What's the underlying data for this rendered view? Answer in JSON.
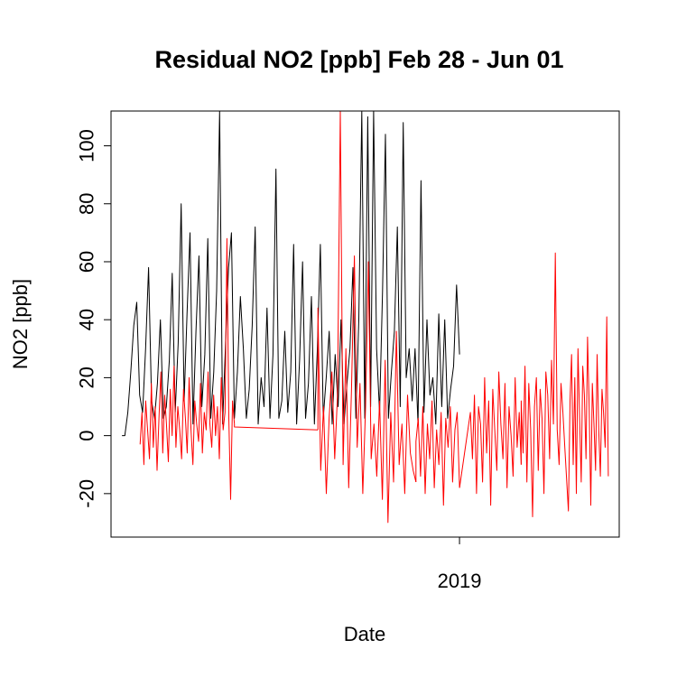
{
  "chart_data": {
    "type": "line",
    "title": "Residual NO2 [ppb] Feb 28 - Jun 01",
    "xlabel": "Date",
    "ylabel": "NO2 [ppb]",
    "x_ticks": [
      "2019"
    ],
    "y_ticks": [
      -20,
      0,
      20,
      40,
      60,
      80,
      100
    ],
    "ylim": [
      -35,
      112
    ],
    "grid": false,
    "legend": "none",
    "colors": {
      "series_black": "#000000",
      "series_red": "#ff0000",
      "axis": "#000000"
    },
    "series": [
      {
        "color": "#000000",
        "segments": [
          {
            "from": "2018-02-28",
            "to": "2018-06-01",
            "values": [
              0,
              0,
              8,
              22,
              38,
              46,
              14,
              8,
              30,
              58,
              12,
              6,
              18,
              40,
              6,
              10,
              26,
              56,
              8,
              32,
              80,
              12,
              42,
              70,
              4,
              36,
              62,
              10,
              28,
              68,
              6,
              22,
              50,
              112,
              4,
              32,
              58,
              70,
              6,
              22,
              48,
              30,
              6,
              16,
              38,
              72,
              4,
              20,
              10,
              44,
              6,
              28,
              92,
              6,
              12,
              36,
              8,
              22,
              66,
              4,
              26,
              60,
              6,
              18,
              48,
              4,
              30,
              66,
              6,
              20,
              36,
              4,
              28,
              10,
              40,
              4,
              18,
              30,
              58,
              6,
              40,
              112,
              6,
              110,
              10,
              112,
              30,
              8,
              50,
              104,
              6,
              22,
              36,
              72,
              10,
              108,
              20,
              30,
              12,
              30,
              4,
              88,
              8,
              40,
              14,
              20,
              4,
              42,
              10,
              40,
              6,
              16,
              24,
              52,
              28
            ]
          }
        ]
      },
      {
        "color": "#ff0000",
        "segments": [
          {
            "from": "2018-03-05",
            "to": "2018-03-31",
            "values": [
              -3,
              8,
              -10,
              12,
              2,
              -8,
              18,
              -4,
              10,
              -12,
              6,
              22,
              -6,
              14,
              4,
              -9,
              16,
              0,
              24,
              -4,
              10,
              2,
              -8,
              16,
              6,
              -6,
              20,
              2,
              -10,
              12,
              4,
              -2,
              18,
              -6,
              8,
              2,
              22,
              4,
              -4,
              14,
              0,
              10,
              -8,
              20,
              2,
              8,
              68,
              6,
              -22,
              12,
              4
            ]
          },
          {
            "from": "2018-03-31",
            "to": "2018-04-23",
            "values": [
              3,
              2
            ]
          },
          {
            "from": "2018-04-23",
            "to": "2018-05-20",
            "values": [
              44,
              -12,
              10,
              -20,
              6,
              22,
              -8,
              14,
              112,
              -10,
              30,
              -18,
              16,
              62,
              -4,
              18,
              -20,
              10,
              60,
              -8,
              4,
              -14,
              12,
              -22,
              26,
              -30,
              8,
              -16,
              36,
              -10,
              4,
              -20,
              14,
              -6,
              -12,
              -16
            ]
          },
          {
            "from": "2018-05-20",
            "to": "2018-06-01",
            "values": [
              -2,
              6,
              -14,
              10,
              -20,
              4,
              -8,
              12,
              -18,
              2,
              -10,
              8,
              -24,
              6,
              -4,
              10,
              -16,
              2,
              8,
              -18
            ]
          },
          {
            "from": "2018-06-04",
            "to": "2018-06-18",
            "values": [
              8,
              -8,
              14,
              -20,
              10,
              4,
              -16,
              20,
              -6,
              12,
              -24,
              16,
              2,
              -12,
              22,
              4,
              -8,
              18,
              -18,
              10,
              0,
              -14,
              20,
              -4,
              8,
              -10
            ]
          },
          {
            "from": "2018-06-18",
            "to": "2018-06-30",
            "values": [
              12,
              -6,
              24,
              -16,
              18,
              2,
              -28,
              10,
              20,
              -12,
              16,
              6,
              -20,
              22,
              14,
              -8,
              26,
              4,
              63,
              2,
              -10,
              18,
              8,
              -4
            ]
          },
          {
            "from": "2018-07-01",
            "to": "2018-07-12",
            "values": [
              -26,
              12,
              28,
              -10,
              20,
              -20,
              30,
              6,
              -16,
              24,
              14,
              -8,
              34,
              10,
              -24,
              18,
              4,
              -12,
              28,
              2,
              -14,
              16,
              8,
              -4,
              41,
              -14
            ]
          }
        ]
      }
    ]
  }
}
